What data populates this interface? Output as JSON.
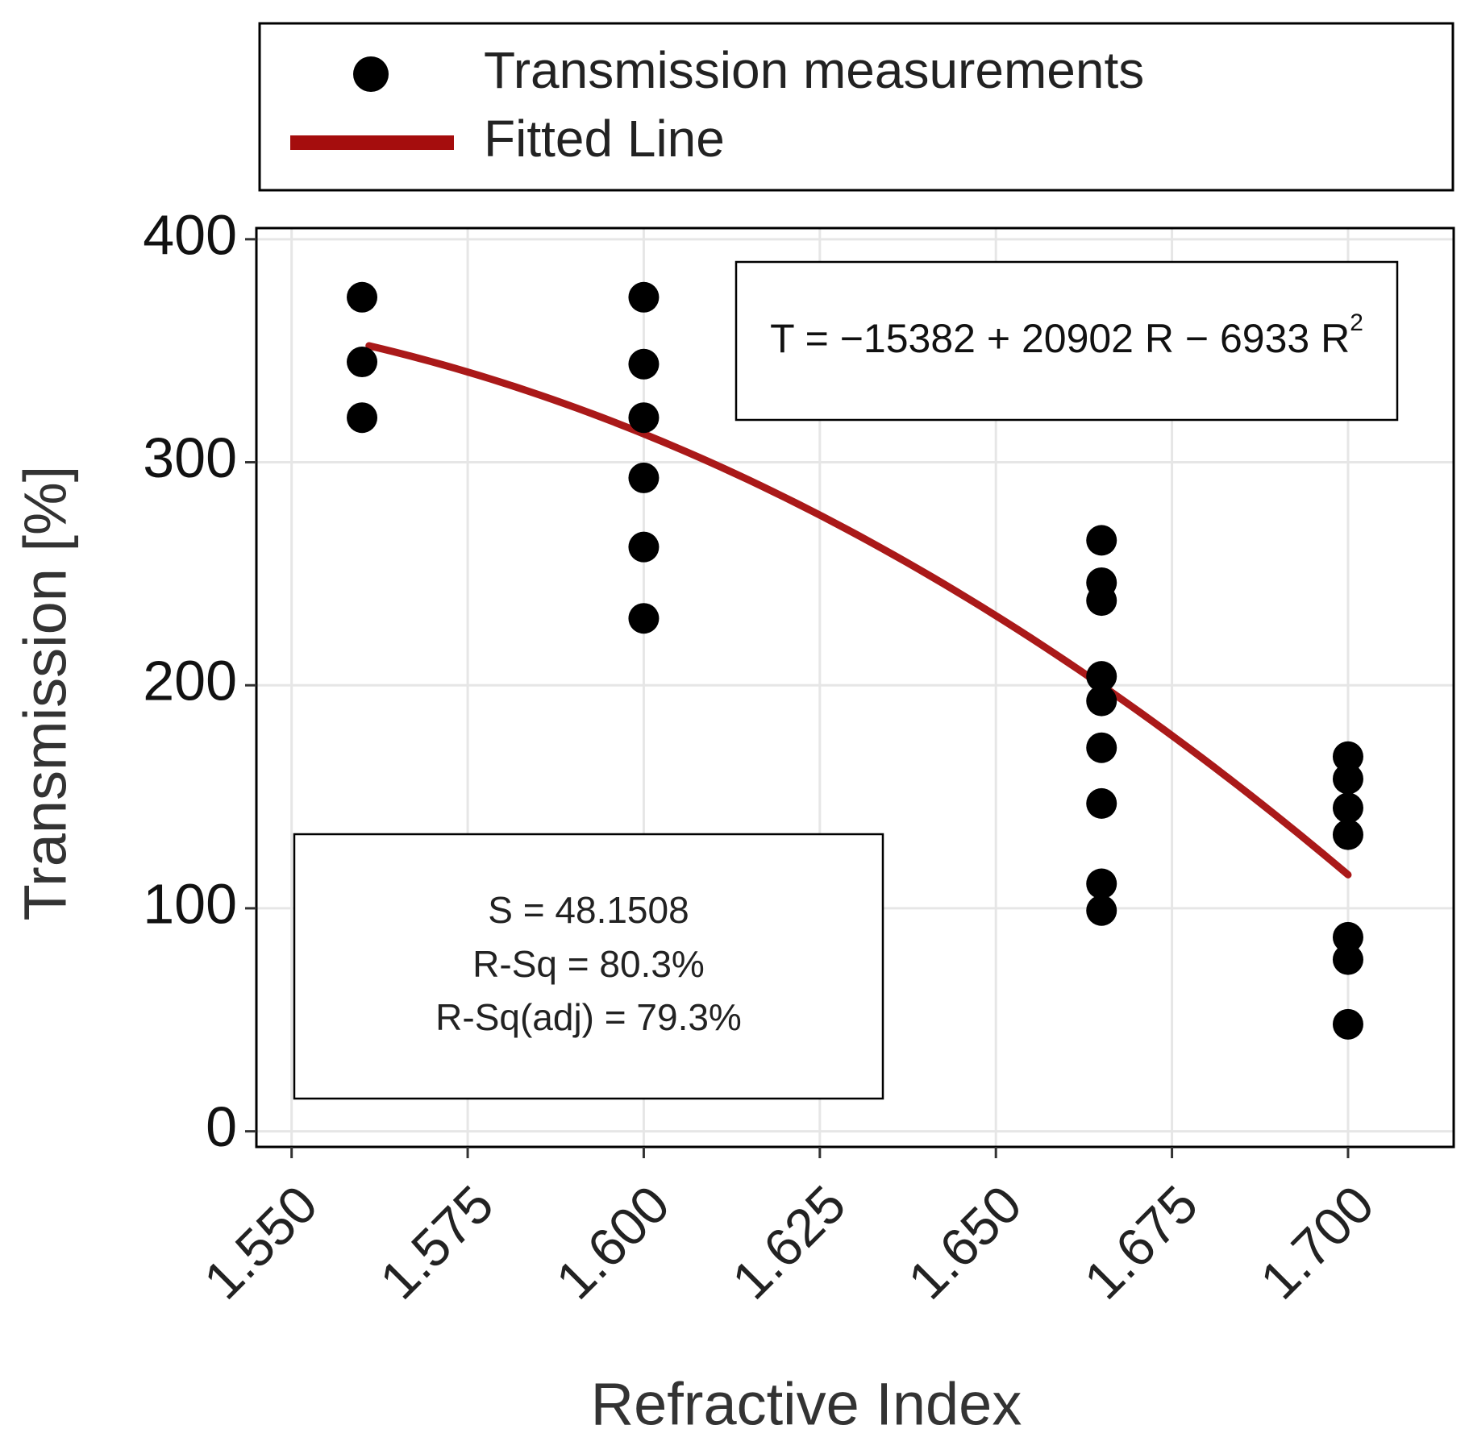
{
  "chart_data": {
    "type": "scatter",
    "title": "",
    "xlabel": "Refractive Index",
    "ylabel": "Transmission [%]",
    "xlim": [
      1.545,
      1.715
    ],
    "ylim": [
      -7,
      405
    ],
    "x_ticks": [
      "1.550",
      "1.575",
      "1.600",
      "1.625",
      "1.650",
      "1.675",
      "1.700"
    ],
    "y_ticks": [
      "0",
      "100",
      "200",
      "300",
      "400"
    ],
    "grid": true,
    "legend_position": "top",
    "legend": [
      {
        "label": "Transmission measurements",
        "marker": "circle",
        "color": "#000000"
      },
      {
        "label": "Fitted Line",
        "marker": "line",
        "color": "#a50d0d"
      }
    ],
    "series": [
      {
        "name": "Transmission measurements",
        "kind": "scatter",
        "color": "#000000",
        "points": [
          {
            "x": 1.56,
            "y": 374
          },
          {
            "x": 1.56,
            "y": 345
          },
          {
            "x": 1.56,
            "y": 320
          },
          {
            "x": 1.6,
            "y": 374
          },
          {
            "x": 1.6,
            "y": 344
          },
          {
            "x": 1.6,
            "y": 320
          },
          {
            "x": 1.6,
            "y": 293
          },
          {
            "x": 1.6,
            "y": 262
          },
          {
            "x": 1.6,
            "y": 230
          },
          {
            "x": 1.665,
            "y": 265
          },
          {
            "x": 1.665,
            "y": 246
          },
          {
            "x": 1.665,
            "y": 238
          },
          {
            "x": 1.665,
            "y": 204
          },
          {
            "x": 1.665,
            "y": 193
          },
          {
            "x": 1.665,
            "y": 172
          },
          {
            "x": 1.665,
            "y": 147
          },
          {
            "x": 1.665,
            "y": 111
          },
          {
            "x": 1.665,
            "y": 99
          },
          {
            "x": 1.7,
            "y": 168
          },
          {
            "x": 1.7,
            "y": 158
          },
          {
            "x": 1.7,
            "y": 145
          },
          {
            "x": 1.7,
            "y": 133
          },
          {
            "x": 1.7,
            "y": 87
          },
          {
            "x": 1.7,
            "y": 77
          },
          {
            "x": 1.7,
            "y": 48
          }
        ]
      },
      {
        "name": "Fitted Line",
        "kind": "line",
        "color": "#a50d0d",
        "x_range": [
          1.561,
          1.7
        ],
        "equation": {
          "intercept": -15382,
          "linear": 20902,
          "quadratic": -6933
        }
      }
    ],
    "annotations": {
      "equation": {
        "prefix": "T = −15382 + 20902 R − 6933 R",
        "superscript": "2"
      },
      "stats": [
        "S = 48.1508",
        "R-Sq = 80.3%",
        "R-Sq(adj) = 79.3%"
      ]
    }
  }
}
